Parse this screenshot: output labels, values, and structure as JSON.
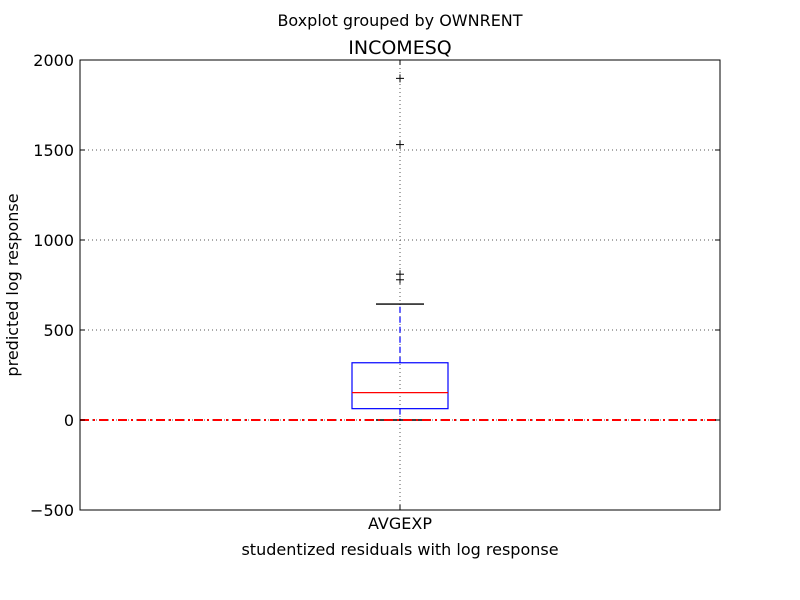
{
  "figure": {
    "suptitle": "Boxplot grouped by OWNRENT"
  },
  "chart_data": {
    "type": "boxplot",
    "title": "INCOMESQ",
    "xlabel": "studentized residuals with log response",
    "ylabel": "predicted log response",
    "categories": [
      "AVGEXP"
    ],
    "ylim": [
      -500,
      2000
    ],
    "yticks": [
      -500,
      0,
      500,
      1000,
      1500,
      2000
    ],
    "ytick_labels": [
      "−500",
      "0",
      "500",
      "1000",
      "1500",
      "2000"
    ],
    "grid": true,
    "boxes": [
      {
        "category": "AVGEXP",
        "whisker_low": 0,
        "q1": 63,
        "median": 152,
        "q3": 318,
        "whisker_high": 644,
        "fliers": [
          779,
          810,
          1530,
          1898
        ]
      }
    ],
    "hline": {
      "y": 0,
      "color": "#ff0000",
      "style": "dash-dot"
    },
    "colors": {
      "box": "#0000ff",
      "median": "#ff0000",
      "whisker": "#0000ff",
      "cap": "#000000",
      "flier": "#000000",
      "grid": "#555555"
    }
  }
}
